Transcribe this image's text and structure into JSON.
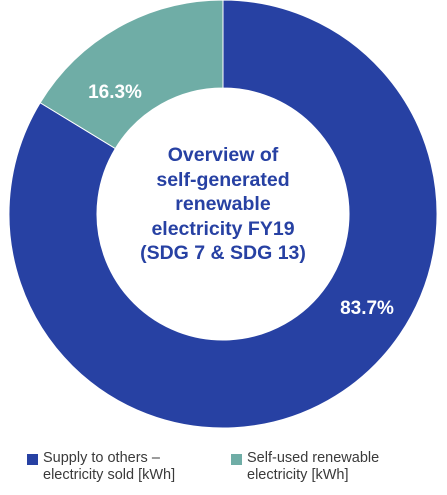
{
  "chart_data": {
    "type": "pie",
    "donut": true,
    "title_lines": [
      "Overview of",
      "self-generated",
      "renewable",
      "electricity FY19",
      "(SDG 7 & SDG 13)"
    ],
    "slices": [
      {
        "name_lines": [
          "Supply to others –",
          "electricity sold [kWh]"
        ],
        "value": 83.7,
        "label": "83.7%",
        "color": "#2741a3"
      },
      {
        "name_lines": [
          "Self-used renewable",
          "electricity [kWh]"
        ],
        "value": 16.3,
        "label": "16.3%",
        "color": "#6fada6"
      }
    ],
    "legend_position": "bottom"
  }
}
